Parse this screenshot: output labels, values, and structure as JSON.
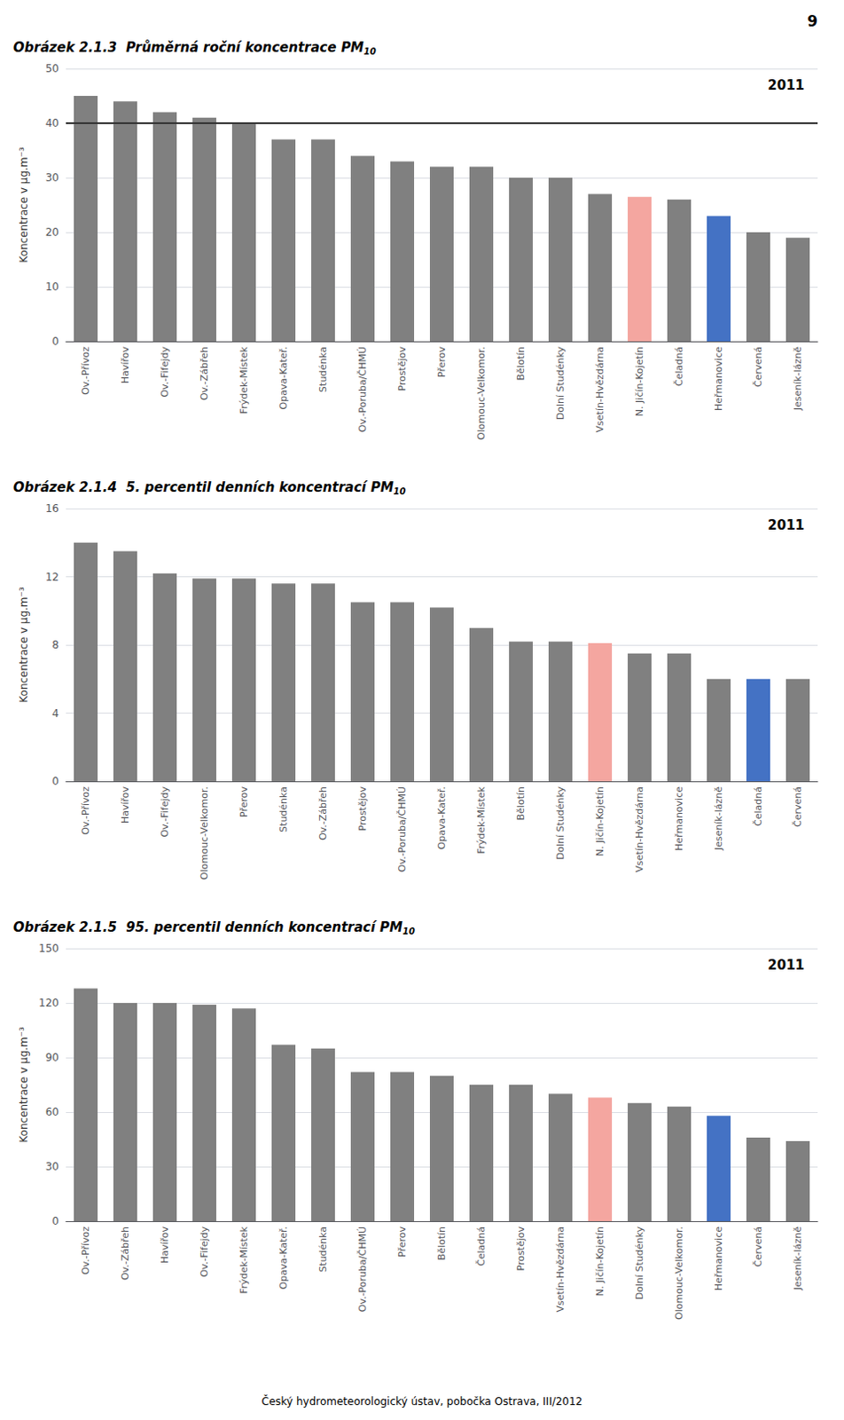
{
  "chart_data": [
    {
      "type": "bar",
      "title": "Obrázek 2.1.3  Průměrná roční koncentrace PM",
      "subtitle": "10",
      "ylabel": "Koncentrace v μg.m⁻³",
      "annotations": [
        "2011"
      ],
      "ref_line": 40,
      "ylim": [
        0,
        50
      ],
      "yticks": [
        0,
        10,
        20,
        30,
        40,
        50
      ],
      "grid": true,
      "categories": [
        "Ov.-Přívoz",
        "Havířov",
        "Ov.-Fifejdy",
        "Ov.-Zábřeh",
        "Frýdek-Místek",
        "Opava-Kateř.",
        "Studénka",
        "Ov.-Poruba/ČHMÚ",
        "Prostějov",
        "Přerov",
        "Olomouc-Velkomor.",
        "Bělotín",
        "Dolní Studénky",
        "Vsetín-Hvězdárna",
        "N. Jičín-Kojetín",
        "Čeladná",
        "Heřmanovice",
        "Červená",
        "Jeseník-lázně"
      ],
      "values": [
        45,
        44,
        42,
        41,
        40,
        37,
        37,
        34,
        33,
        32,
        32,
        30,
        30,
        27,
        26.5,
        26,
        23,
        20,
        19
      ],
      "colors": [
        "#808080",
        "#808080",
        "#808080",
        "#808080",
        "#808080",
        "#808080",
        "#808080",
        "#808080",
        "#808080",
        "#808080",
        "#808080",
        "#808080",
        "#808080",
        "#808080",
        "#F4A6A0",
        "#808080",
        "#4472C4",
        "#808080",
        "#808080"
      ]
    },
    {
      "type": "bar",
      "title": "Obrázek 2.1.4  5. percentil denních koncentrací PM",
      "subtitle": "10",
      "ylabel": "Koncentrace v μg.m⁻³",
      "annotations": [
        "2011"
      ],
      "ylim": [
        0,
        16
      ],
      "yticks": [
        0,
        4,
        8,
        12,
        16
      ],
      "grid": true,
      "categories": [
        "Ov.-Přívoz",
        "Havířov",
        "Ov.-Fifejdy",
        "Olomouc-Velkomor.",
        "Přerov",
        "Studénka",
        "Ov.-Zábřeh",
        "Prostějov",
        "Ov.-Poruba/ČHMÚ",
        "Opava-Kateř.",
        "Frýdek-Místek",
        "Bělotín",
        "Dolní Studénky",
        "N. Jičín-Kojetín",
        "Vsetín-Hvězdárna",
        "Heřmanovice",
        "Jeseník-lázně",
        "Čeladná",
        "Červená"
      ],
      "values": [
        14.0,
        13.5,
        12.2,
        11.9,
        11.9,
        11.6,
        11.6,
        10.5,
        10.5,
        10.2,
        9.0,
        8.2,
        8.2,
        8.1,
        7.5,
        7.5,
        6.0,
        6.0,
        6.0
      ],
      "colors": [
        "#808080",
        "#808080",
        "#808080",
        "#808080",
        "#808080",
        "#808080",
        "#808080",
        "#808080",
        "#808080",
        "#808080",
        "#808080",
        "#808080",
        "#808080",
        "#F4A6A0",
        "#808080",
        "#808080",
        "#808080",
        "#4472C4",
        "#808080"
      ]
    },
    {
      "type": "bar",
      "title": "Obrázek 2.1.5  95. percentil denních koncentrací PM",
      "subtitle": "10",
      "ylabel": "Koncentrace v μg.m⁻³",
      "annotations": [
        "2011"
      ],
      "ylim": [
        0,
        150
      ],
      "yticks": [
        0,
        30,
        60,
        90,
        120,
        150
      ],
      "grid": true,
      "categories": [
        "Ov.-Přívoz",
        "Ov.-Zábřeh",
        "Havířov",
        "Ov.-Fifejdy",
        "Frýdek-Místek",
        "Opava-Kateř.",
        "Studénka",
        "Ov.-Poruba/ČHMÚ",
        "Přerov",
        "Bělotín",
        "Čeladná",
        "Prostějov",
        "Vsetín-Hvězdárna",
        "N. Jičín-Kojetín",
        "Dolní Studénky",
        "Olomouc-Velkomor.",
        "Heřmanovice",
        "Červená",
        "Jeseník-lázně"
      ],
      "values": [
        128,
        120,
        120,
        119,
        117,
        97,
        95,
        82,
        82,
        80,
        75,
        75,
        70,
        68,
        65,
        63,
        58,
        46,
        44
      ],
      "colors": [
        "#808080",
        "#808080",
        "#808080",
        "#808080",
        "#808080",
        "#808080",
        "#808080",
        "#808080",
        "#808080",
        "#808080",
        "#808080",
        "#808080",
        "#808080",
        "#F4A6A0",
        "#808080",
        "#808080",
        "#4472C4",
        "#808080",
        "#808080"
      ]
    }
  ],
  "annotations": [
    "9",
    "Český hydrometeorologický ústav, pobočka Ostrava, III/2012"
  ]
}
